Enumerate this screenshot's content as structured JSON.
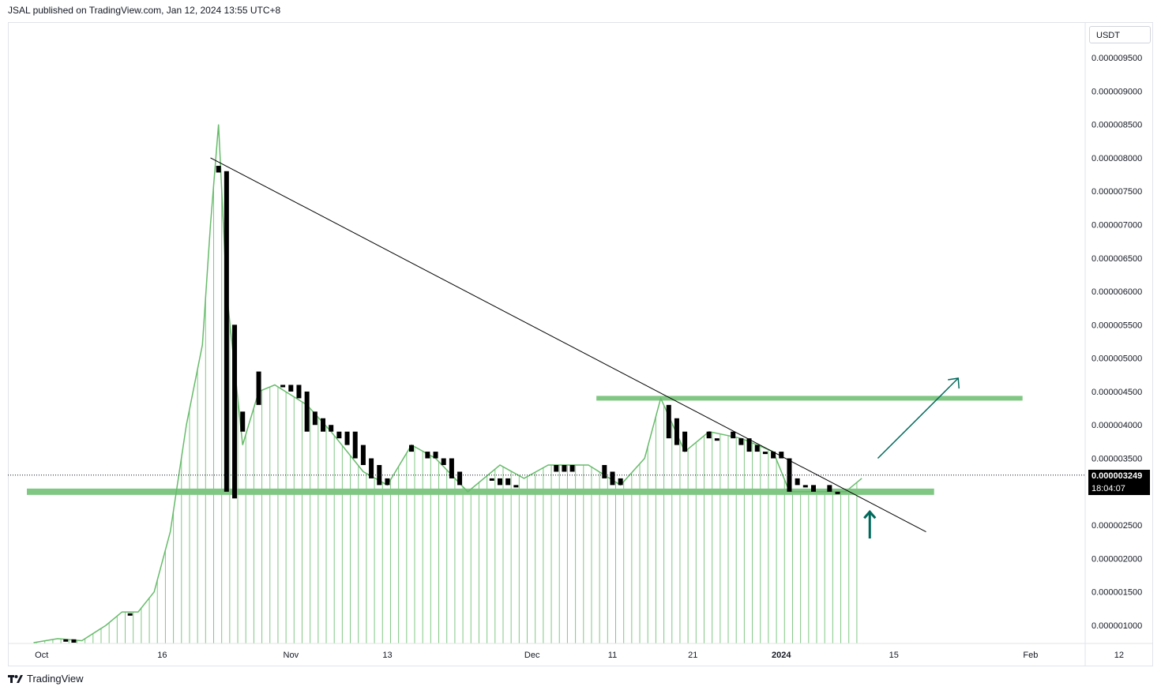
{
  "header": {
    "publisher_line": "JSAL published on TradingView.com, Jan 12, 2024 13:55 UTC+8"
  },
  "footer": {
    "brand": "TradingView",
    "logo_icon": "tradingview-logo-icon"
  },
  "price_scale": {
    "currency": "USDT",
    "last_price_label": "0.000003249",
    "countdown_label": "18:04:07",
    "last_price": 3.249e-06
  },
  "colors": {
    "candle": "#000000",
    "ma_line": "#66bb6a",
    "volume_bars": "#81c784",
    "zone": "#81c784",
    "trendline": "#000000",
    "arrow": "#00695c",
    "grid_text": "#131722"
  },
  "chart_data": {
    "type": "candlestick",
    "title": "",
    "xlabel": "",
    "ylabel": "",
    "ylim": [
      6e-07,
      9.8e-06
    ],
    "y_tick_labels": [
      "0.000009500",
      "0.000009000",
      "0.000008500",
      "0.000008000",
      "0.000007500",
      "0.000007000",
      "0.000006500",
      "0.000006000",
      "0.000005500",
      "0.000005000",
      "0.000004500",
      "0.000004000",
      "0.000003500",
      "0.000003000",
      "0.000002500",
      "0.000002000",
      "0.000001500",
      "0.000001000"
    ],
    "y_ticks": [
      9.5e-06,
      9e-06,
      8.5e-06,
      8e-06,
      7.5e-06,
      7e-06,
      6.5e-06,
      6e-06,
      5.5e-06,
      5e-06,
      4.5e-06,
      4e-06,
      3.5e-06,
      3e-06,
      2.5e-06,
      2e-06,
      1.5e-06,
      1e-06
    ],
    "x_ticks": [
      {
        "label": "Oct",
        "date": "2023-10-01"
      },
      {
        "label": "16",
        "date": "2023-10-16"
      },
      {
        "label": "Nov",
        "date": "2023-11-01"
      },
      {
        "label": "13",
        "date": "2023-11-13"
      },
      {
        "label": "Dec",
        "date": "2023-12-01"
      },
      {
        "label": "11",
        "date": "2023-12-11"
      },
      {
        "label": "21",
        "date": "2023-12-21"
      },
      {
        "label": "2024",
        "date": "2024-01-01"
      },
      {
        "label": "15",
        "date": "2024-01-15"
      },
      {
        "label": "Feb",
        "date": "2024-02-01"
      },
      {
        "label": "12",
        "date": "2024-02-12"
      }
    ],
    "candles": [
      {
        "date": "2023-10-04",
        "open": 7.9e-07,
        "close": 7.8e-07
      },
      {
        "date": "2023-10-05",
        "open": 7.9e-07,
        "close": 7.4e-07
      },
      {
        "date": "2023-10-12",
        "open": 1.18e-06,
        "close": 1.18e-06
      },
      {
        "date": "2023-10-23",
        "open": 7.88e-06,
        "close": 7.78e-06
      },
      {
        "date": "2023-10-24",
        "open": 7.8e-06,
        "close": 3e-06
      },
      {
        "date": "2023-10-25",
        "open": 5.5e-06,
        "close": 2.9e-06
      },
      {
        "date": "2023-10-26",
        "open": 4.2e-06,
        "close": 3.9e-06
      },
      {
        "date": "2023-10-28",
        "open": 4.8e-06,
        "close": 4.3e-06
      },
      {
        "date": "2023-10-31",
        "open": 4.6e-06,
        "close": 4.6e-06
      },
      {
        "date": "2023-11-01",
        "open": 4.6e-06,
        "close": 4.5e-06
      },
      {
        "date": "2023-11-02",
        "open": 4.6e-06,
        "close": 4.4e-06
      },
      {
        "date": "2023-11-03",
        "open": 4.5e-06,
        "close": 3.9e-06
      },
      {
        "date": "2023-11-04",
        "open": 4.2e-06,
        "close": 4e-06
      },
      {
        "date": "2023-11-05",
        "open": 4.1e-06,
        "close": 3.9e-06
      },
      {
        "date": "2023-11-06",
        "open": 4e-06,
        "close": 3.9e-06
      },
      {
        "date": "2023-11-07",
        "open": 3.9e-06,
        "close": 3.8e-06
      },
      {
        "date": "2023-11-08",
        "open": 3.9e-06,
        "close": 3.7e-06
      },
      {
        "date": "2023-11-09",
        "open": 3.9e-06,
        "close": 3.5e-06
      },
      {
        "date": "2023-11-10",
        "open": 3.7e-06,
        "close": 3.4e-06
      },
      {
        "date": "2023-11-11",
        "open": 3.5e-06,
        "close": 3.2e-06
      },
      {
        "date": "2023-11-12",
        "open": 3.4e-06,
        "close": 3.1e-06
      },
      {
        "date": "2023-11-13",
        "open": 3.2e-06,
        "close": 3.1e-06
      },
      {
        "date": "2023-11-16",
        "open": 3.7e-06,
        "close": 3.6e-06
      },
      {
        "date": "2023-11-18",
        "open": 3.6e-06,
        "close": 3.5e-06
      },
      {
        "date": "2023-11-19",
        "open": 3.6e-06,
        "close": 3.5e-06
      },
      {
        "date": "2023-11-20",
        "open": 3.5e-06,
        "close": 3.4e-06
      },
      {
        "date": "2023-11-21",
        "open": 3.5e-06,
        "close": 3.2e-06
      },
      {
        "date": "2023-11-22",
        "open": 3.3e-06,
        "close": 3.1e-06
      },
      {
        "date": "2023-11-26",
        "open": 3.2e-06,
        "close": 3.2e-06
      },
      {
        "date": "2023-11-27",
        "open": 3.2e-06,
        "close": 3.1e-06
      },
      {
        "date": "2023-11-28",
        "open": 3.2e-06,
        "close": 3.1e-06
      },
      {
        "date": "2023-11-29",
        "open": 3.1e-06,
        "close": 3.1e-06
      },
      {
        "date": "2023-12-04",
        "open": 3.4e-06,
        "close": 3.3e-06
      },
      {
        "date": "2023-12-05",
        "open": 3.4e-06,
        "close": 3.3e-06
      },
      {
        "date": "2023-12-06",
        "open": 3.4e-06,
        "close": 3.3e-06
      },
      {
        "date": "2023-12-10",
        "open": 3.4e-06,
        "close": 3.2e-06
      },
      {
        "date": "2023-12-11",
        "open": 3.3e-06,
        "close": 3.1e-06
      },
      {
        "date": "2023-12-12",
        "open": 3.2e-06,
        "close": 3.1e-06
      },
      {
        "date": "2023-12-18",
        "open": 4.3e-06,
        "close": 3.8e-06
      },
      {
        "date": "2023-12-19",
        "open": 4.1e-06,
        "close": 3.7e-06
      },
      {
        "date": "2023-12-20",
        "open": 3.9e-06,
        "close": 3.6e-06
      },
      {
        "date": "2023-12-23",
        "open": 3.9e-06,
        "close": 3.8e-06
      },
      {
        "date": "2023-12-24",
        "open": 3.8e-06,
        "close": 3.8e-06
      },
      {
        "date": "2023-12-26",
        "open": 3.9e-06,
        "close": 3.8e-06
      },
      {
        "date": "2023-12-27",
        "open": 3.8e-06,
        "close": 3.7e-06
      },
      {
        "date": "2023-12-28",
        "open": 3.8e-06,
        "close": 3.6e-06
      },
      {
        "date": "2023-12-29",
        "open": 3.7e-06,
        "close": 3.6e-06
      },
      {
        "date": "2023-12-30",
        "open": 3.6e-06,
        "close": 3.6e-06
      },
      {
        "date": "2023-12-31",
        "open": 3.6e-06,
        "close": 3.5e-06
      },
      {
        "date": "2024-01-01",
        "open": 3.6e-06,
        "close": 3.5e-06
      },
      {
        "date": "2024-01-02",
        "open": 3.5e-06,
        "close": 3e-06
      },
      {
        "date": "2024-01-03",
        "open": 3.2e-06,
        "close": 3.1e-06
      },
      {
        "date": "2024-01-04",
        "open": 3.1e-06,
        "close": 3.1e-06
      },
      {
        "date": "2024-01-05",
        "open": 3.1e-06,
        "close": 3e-06
      },
      {
        "date": "2024-01-07",
        "open": 3.1e-06,
        "close": 3e-06
      },
      {
        "date": "2024-01-08",
        "open": 3e-06,
        "close": 3e-06
      }
    ],
    "ma_line": [
      {
        "date": "2023-09-30",
        "value": 7.4e-07
      },
      {
        "date": "2023-10-03",
        "value": 8e-07
      },
      {
        "date": "2023-10-06",
        "value": 7.7e-07
      },
      {
        "date": "2023-10-09",
        "value": 1e-06
      },
      {
        "date": "2023-10-11",
        "value": 1.2e-06
      },
      {
        "date": "2023-10-13",
        "value": 1.2e-06
      },
      {
        "date": "2023-10-15",
        "value": 1.5e-06
      },
      {
        "date": "2023-10-17",
        "value": 2.4e-06
      },
      {
        "date": "2023-10-19",
        "value": 4e-06
      },
      {
        "date": "2023-10-21",
        "value": 5.2e-06
      },
      {
        "date": "2023-10-22",
        "value": 7e-06
      },
      {
        "date": "2023-10-23",
        "value": 8.5e-06
      },
      {
        "date": "2023-10-24",
        "value": 6e-06
      },
      {
        "date": "2023-10-26",
        "value": 3.7e-06
      },
      {
        "date": "2023-10-28",
        "value": 4.5e-06
      },
      {
        "date": "2023-10-30",
        "value": 4.6e-06
      },
      {
        "date": "2023-11-03",
        "value": 4.3e-06
      },
      {
        "date": "2023-11-06",
        "value": 3.9e-06
      },
      {
        "date": "2023-11-10",
        "value": 3.3e-06
      },
      {
        "date": "2023-11-13",
        "value": 3.1e-06
      },
      {
        "date": "2023-11-16",
        "value": 3.7e-06
      },
      {
        "date": "2023-11-19",
        "value": 3.5e-06
      },
      {
        "date": "2023-11-23",
        "value": 3e-06
      },
      {
        "date": "2023-11-27",
        "value": 3.4e-06
      },
      {
        "date": "2023-11-30",
        "value": 3.2e-06
      },
      {
        "date": "2023-12-03",
        "value": 3.4e-06
      },
      {
        "date": "2023-12-08",
        "value": 3.4e-06
      },
      {
        "date": "2023-12-12",
        "value": 3.1e-06
      },
      {
        "date": "2023-12-15",
        "value": 3.5e-06
      },
      {
        "date": "2023-12-17",
        "value": 4.4e-06
      },
      {
        "date": "2023-12-20",
        "value": 3.6e-06
      },
      {
        "date": "2023-12-23",
        "value": 3.9e-06
      },
      {
        "date": "2023-12-27",
        "value": 3.8e-06
      },
      {
        "date": "2023-12-31",
        "value": 3.6e-06
      },
      {
        "date": "2024-01-02",
        "value": 3e-06
      },
      {
        "date": "2024-01-06",
        "value": 3e-06
      },
      {
        "date": "2024-01-09",
        "value": 3e-06
      },
      {
        "date": "2024-01-11",
        "value": 3.2e-06
      }
    ],
    "annotations": {
      "trendline": {
        "from": {
          "date": "2023-10-22",
          "value": 8e-06
        },
        "to": {
          "date": "2024-01-19",
          "value": 2.4e-06
        }
      },
      "resistance_zone": {
        "from_date": "2023-12-09",
        "to_date": "2024-01-31",
        "value": 4.4e-06
      },
      "support_zone": {
        "from_date": "2023-09-30",
        "to_date": "2024-01-20",
        "value": 3e-06
      },
      "breakout_arrow": {
        "from": {
          "date": "2024-01-13",
          "value": 3.5e-06
        },
        "to": {
          "date": "2024-01-23",
          "value": 4.7e-06
        }
      },
      "up_arrow": {
        "date": "2024-01-12",
        "from_value": 2.3e-06,
        "to_value": 2.7e-06
      },
      "last_price_line": 3.249e-06
    }
  }
}
